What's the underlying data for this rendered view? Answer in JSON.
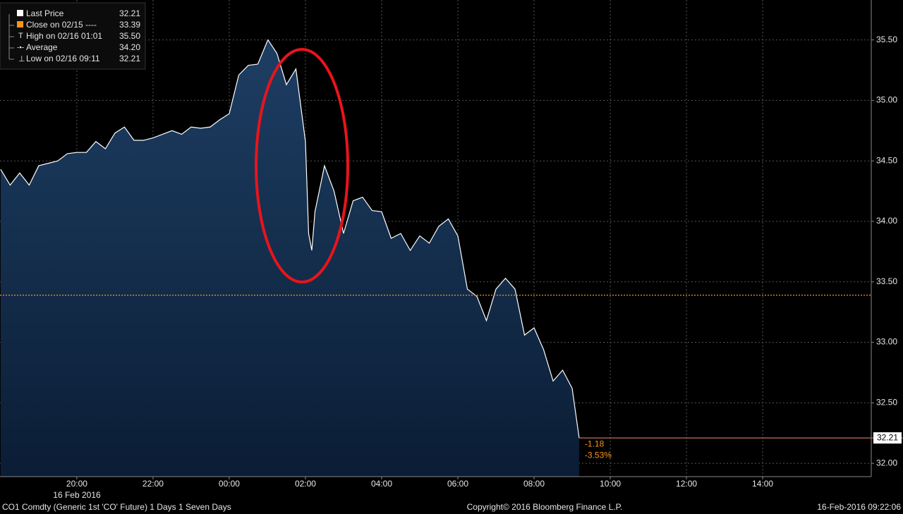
{
  "chart_data": {
    "type": "area",
    "series": [
      {
        "name": "Last Price",
        "color": "#ffffff",
        "fill_color": "#163456",
        "x": [
          "18:00",
          "18:15",
          "18:30",
          "18:45",
          "19:00",
          "19:15",
          "19:30",
          "19:45",
          "20:00",
          "20:15",
          "20:30",
          "20:45",
          "21:00",
          "21:15",
          "21:30",
          "21:45",
          "22:00",
          "22:15",
          "22:30",
          "22:45",
          "23:00",
          "23:15",
          "23:30",
          "23:45",
          "00:00",
          "00:15",
          "00:30",
          "00:45",
          "01:00",
          "01:01",
          "01:15",
          "01:30",
          "01:45",
          "02:00",
          "02:05",
          "02:10",
          "02:15",
          "02:30",
          "02:45",
          "03:00",
          "03:15",
          "03:30",
          "03:45",
          "04:00",
          "04:15",
          "04:30",
          "04:45",
          "05:00",
          "05:15",
          "05:30",
          "05:45",
          "06:00",
          "06:15",
          "06:30",
          "06:45",
          "07:00",
          "07:15",
          "07:30",
          "07:45",
          "08:00",
          "08:15",
          "08:30",
          "08:45",
          "09:00",
          "09:11"
        ],
        "values": [
          34.43,
          34.3,
          34.4,
          34.3,
          34.46,
          34.48,
          34.5,
          34.56,
          34.57,
          34.57,
          34.66,
          34.6,
          34.73,
          34.78,
          34.67,
          34.67,
          34.69,
          34.72,
          34.75,
          34.72,
          34.78,
          34.77,
          34.78,
          34.84,
          34.89,
          35.21,
          35.29,
          35.3,
          35.49,
          35.5,
          35.39,
          35.13,
          35.26,
          34.66,
          33.9,
          33.76,
          34.08,
          34.46,
          34.25,
          33.9,
          34.17,
          34.2,
          34.09,
          34.08,
          33.86,
          33.9,
          33.76,
          33.88,
          33.82,
          33.96,
          34.02,
          33.88,
          33.44,
          33.38,
          33.18,
          33.44,
          33.53,
          33.44,
          33.06,
          33.12,
          32.94,
          32.68,
          32.77,
          32.62,
          32.21
        ]
      }
    ],
    "legend": [
      {
        "name": "Last Price",
        "value": 32.21
      },
      {
        "name": "Close on 02/15 ----",
        "value": 33.39
      },
      {
        "name": "High on 02/16 01:01",
        "value": {
          "value": 35.5,
          "label": "35.50"
        }
      },
      {
        "name": "Average",
        "value": {
          "value": 34.2,
          "label": "34.20"
        }
      },
      {
        "name": "Low on 02/16 09:11",
        "value": 32.21
      }
    ],
    "close_line": {
      "value": 33.39,
      "color": "#f7941d"
    },
    "last_line": {
      "value": 32.21,
      "color": "#f08a6a"
    },
    "change": -1.18,
    "change_pct": {
      "value": -3.53,
      "label": "-3.53%"
    },
    "x_axis_label": "16 Feb 2016",
    "xlim": [
      "17:59",
      "16:51"
    ],
    "xticks": [
      "20:00",
      "22:00",
      "00:00",
      "02:00",
      "04:00",
      "06:00",
      "08:00",
      "10:00",
      "12:00",
      "14:00"
    ],
    "ylim": [
      31.89,
      35.83
    ],
    "yticks": [
      {
        "value": 32,
        "label": "32.00"
      },
      {
        "value": 32.5,
        "label": "32.50"
      },
      {
        "value": 33,
        "label": "33.00"
      },
      {
        "value": 33.5,
        "label": "33.50"
      },
      {
        "value": 34,
        "label": "34.00"
      },
      {
        "value": 34.5,
        "label": "34.50"
      },
      {
        "value": 35,
        "label": "35.00"
      },
      {
        "value": 35.5,
        "label": "35.50"
      }
    ],
    "grid": true,
    "footer": {
      "left": "CO1 Comdty (Generic 1st 'CO' Future) 1 Days 1 Seven Days",
      "center": "Copyright© 2016 Bloomberg Finance L.P.",
      "right": "16-Feb-2016 09:22:06"
    }
  }
}
